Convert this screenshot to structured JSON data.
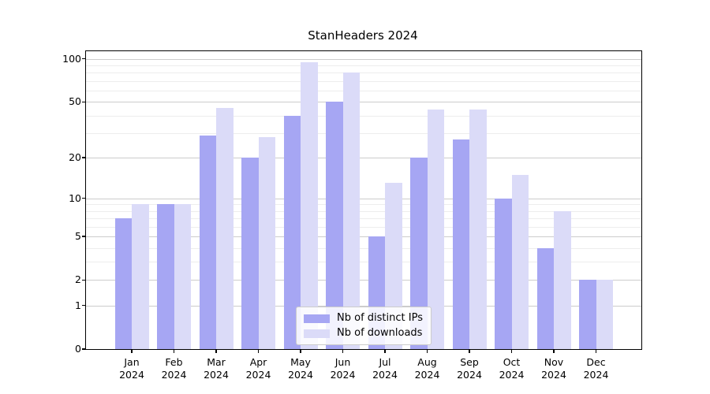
{
  "chart_data": {
    "type": "bar",
    "title": "StanHeaders 2024",
    "categories": [
      "Jan",
      "Feb",
      "Mar",
      "Apr",
      "May",
      "Jun",
      "Jul",
      "Aug",
      "Sep",
      "Oct",
      "Nov",
      "Dec"
    ],
    "year_suffix": "2024",
    "series": [
      {
        "name": "Nb of distinct IPs",
        "color": "#a6a6f3",
        "values": [
          7,
          9,
          29,
          20,
          40,
          50,
          5,
          20,
          27,
          10,
          4,
          2
        ]
      },
      {
        "name": "Nb of downloads",
        "color": "#dbdbf8",
        "values": [
          9,
          9,
          45,
          28,
          95,
          80,
          13,
          44,
          44,
          15,
          8,
          2
        ]
      }
    ],
    "xlabel": "",
    "ylabel": "",
    "scale": "log1p",
    "ylim": [
      0,
      113
    ],
    "y_ticks": [
      0,
      1,
      2,
      5,
      10,
      20,
      50,
      100
    ],
    "y_minor_ticks": [
      3,
      4,
      6,
      7,
      8,
      9,
      30,
      40,
      60,
      70,
      80,
      90
    ],
    "grid": true,
    "legend_position": "lower center",
    "colors": {
      "major_grid": "#cccccc",
      "minor_grid": "#ededed",
      "spine": "#000000",
      "background": "#ffffff",
      "text": "#000000"
    }
  }
}
